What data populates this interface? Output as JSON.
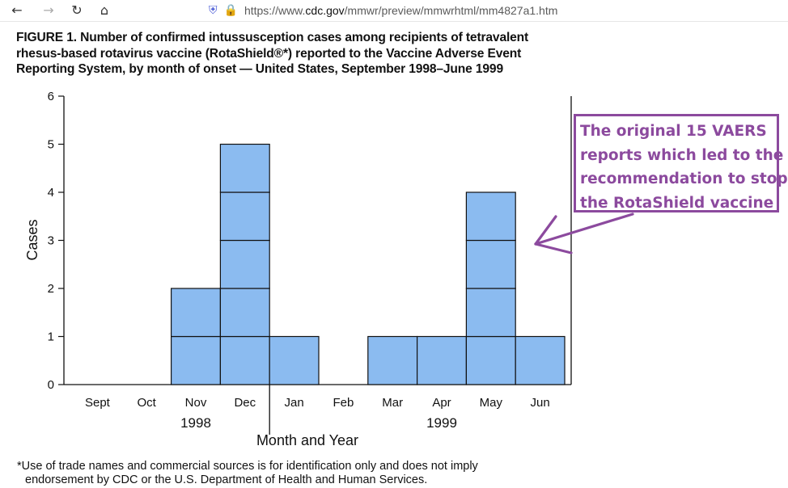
{
  "browser": {
    "back_icon": "arrow-left-icon",
    "forward_icon": "arrow-right-icon",
    "reload_icon": "reload-icon",
    "home_icon": "home-icon",
    "url_prefix": "https://www.",
    "url_domain": "cdc.gov",
    "url_path": "/mmwr/preview/mmwrhtml/mm4827a1.htm"
  },
  "figure": {
    "title_lines": [
      "FIGURE 1. Number of confirmed intussusception cases among recipients of tetravalent",
      "rhesus-based rotavirus vaccine (RotaShield®*) reported to the Vaccine Adverse Event",
      "Reporting System, by month of onset — United States, September 1998–June 1999"
    ],
    "footnote_lines": [
      "*Use of trade names and commercial sources is for identification only and does not imply",
      "endorsement by CDC or the U.S. Department of Health and Human Services."
    ]
  },
  "annotation": {
    "lines": [
      "The original 15 VAERS",
      "reports which led to the",
      "recommendation to stop",
      "the RotaShield vaccine"
    ],
    "color": "#8c4a9e"
  },
  "chart_data": {
    "type": "bar",
    "categories": [
      "Sept",
      "Oct",
      "Nov",
      "Dec",
      "Jan",
      "Feb",
      "Mar",
      "Apr",
      "May",
      "Jun"
    ],
    "values": [
      0,
      0,
      2,
      5,
      1,
      0,
      1,
      1,
      4,
      1
    ],
    "stacked_unit": 1,
    "year_labels": [
      {
        "label": "1998",
        "center_category_index": 2
      },
      {
        "label": "1999",
        "center_category_index": 7
      }
    ],
    "year_divider_after_index": 3,
    "xlabel": "Month and Year",
    "ylabel": "Cases",
    "ylim": [
      0,
      6
    ],
    "yticks": [
      0,
      1,
      2,
      3,
      4,
      5,
      6
    ],
    "grid": false,
    "bar_color": "#8bbbf0",
    "bar_edge_color": "#111111"
  }
}
